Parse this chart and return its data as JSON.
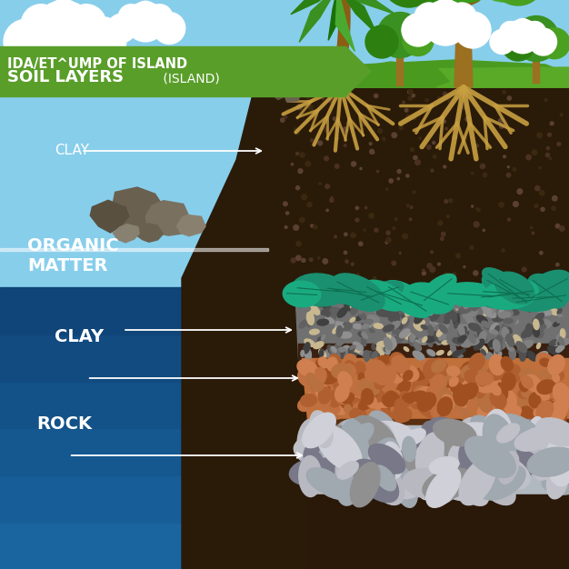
{
  "sky_color": "#87CEEB",
  "sky_color2": "#a8d8ea",
  "water_top": "#2a8fc0",
  "water_mid": "#1565a0",
  "water_deep": "#0d3f70",
  "grass_color": "#5aaa2a",
  "grass_dark": "#3a8010",
  "soil_dark": "#2a1a08",
  "soil_brown": "#c8a87a",
  "header_bg": "#5a9e2a",
  "header_arrow": "#4a8e1a",
  "title_line1": "IDA/ET^UMP OF ISLAND",
  "title_line2": "SOIL LAYERS",
  "title_suffix": " (ISLAND)",
  "layer_sandy": "#c8b080",
  "layer_gravel": "#808080",
  "layer_dark_band": "#3a2010",
  "layer_clay_orange": "#c0703a",
  "layer_rock_gray": "#b0b8c0",
  "layer_base_dark": "#2a1808",
  "leaf_teal": "#1a9070",
  "root_color": "#c8a040",
  "rock_color1": "#6a6050",
  "rock_color2": "#7a7060",
  "white": "#ffffff"
}
